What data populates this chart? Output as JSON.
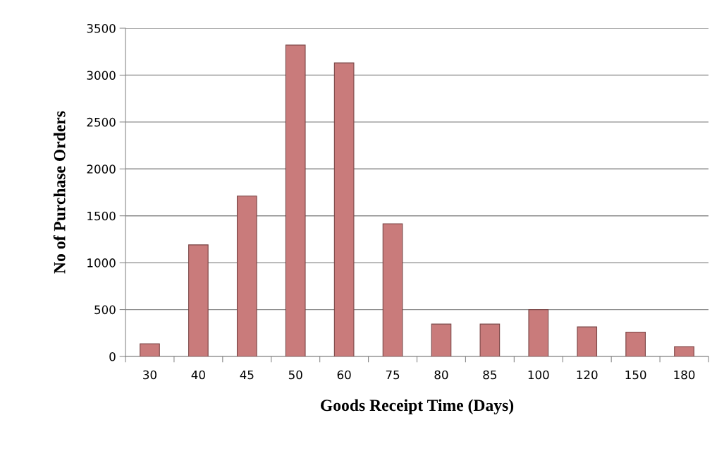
{
  "chart_data": {
    "type": "bar",
    "xlabel": "Goods Receipt Time (Days)",
    "ylabel": "No of Purchase Orders",
    "categories": [
      "30",
      "40",
      "45",
      "50",
      "60",
      "75",
      "80",
      "85",
      "100",
      "120",
      "150",
      "180"
    ],
    "values": [
      135,
      1190,
      1710,
      3320,
      3130,
      1415,
      345,
      345,
      500,
      315,
      260,
      105
    ],
    "color": "#c97b7b",
    "ylim": [
      0,
      3500
    ],
    "yticks": [
      0,
      500,
      1000,
      1500,
      2000,
      2500,
      3000,
      3500
    ],
    "grid": "y"
  }
}
